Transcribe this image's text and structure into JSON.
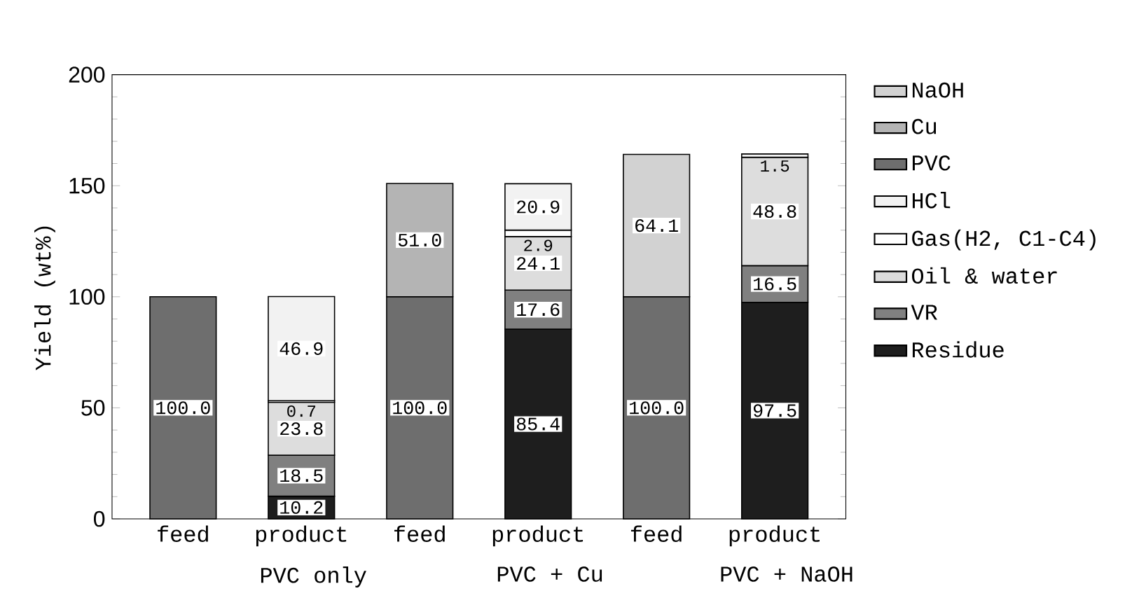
{
  "chart_data": {
    "type": "bar",
    "stacked": true,
    "ylabel": "Yield (wt%)",
    "categories": [
      "feed",
      "product",
      "feed",
      "product",
      "feed",
      "product"
    ],
    "annotations": [
      "PVC only",
      "PVC + Cu",
      "PVC + NaOH"
    ],
    "ylim": [
      0,
      200
    ],
    "yticks": [
      0,
      50,
      100,
      150,
      200
    ],
    "legend": "right",
    "series": [
      {
        "name": "Residue",
        "color": "#1e1e1e",
        "values": [
          null,
          10.2,
          null,
          85.4,
          null,
          97.5
        ],
        "value_labels": [
          null,
          "10.2",
          null,
          "85.4",
          null,
          "97.5"
        ]
      },
      {
        "name": "VR",
        "color": "#808080",
        "values": [
          null,
          18.5,
          null,
          17.6,
          null,
          16.5
        ],
        "value_labels": [
          null,
          "18.5",
          null,
          "17.6",
          null,
          "16.5"
        ]
      },
      {
        "name": "Oil & water",
        "color": "#dddddd",
        "values": [
          null,
          23.8,
          null,
          24.1,
          null,
          48.8
        ],
        "value_labels": [
          null,
          "23.8",
          null,
          "24.1",
          null,
          "48.8"
        ]
      },
      {
        "name": "Gas(H2, C1-C4)",
        "color": "#ffffff",
        "values": [
          null,
          0.7,
          null,
          2.9,
          null,
          null
        ],
        "value_labels": [
          null,
          "0.7",
          null,
          "2.9",
          null,
          null
        ]
      },
      {
        "name": "HCl",
        "color": "#f2f2f2",
        "values": [
          null,
          46.9,
          null,
          20.9,
          null,
          1.5
        ],
        "value_labels": [
          null,
          "46.9",
          null,
          "20.9",
          null,
          "1.5"
        ]
      },
      {
        "name": "PVC",
        "color": "#6e6e6e",
        "values": [
          100,
          null,
          100,
          null,
          100,
          null
        ],
        "value_labels": [
          "100.0",
          null,
          "100.0",
          null,
          "100.0",
          null
        ]
      },
      {
        "name": "Cu",
        "color": "#b4b4b4",
        "values": [
          null,
          null,
          51.0,
          null,
          null,
          null
        ],
        "value_labels": [
          null,
          null,
          "51.0",
          null,
          null,
          null
        ]
      },
      {
        "name": "NaOH",
        "color": "#d2d2d2",
        "values": [
          null,
          null,
          null,
          null,
          64.1,
          null
        ],
        "value_labels": [
          null,
          null,
          null,
          null,
          "64.1",
          null
        ]
      }
    ]
  }
}
